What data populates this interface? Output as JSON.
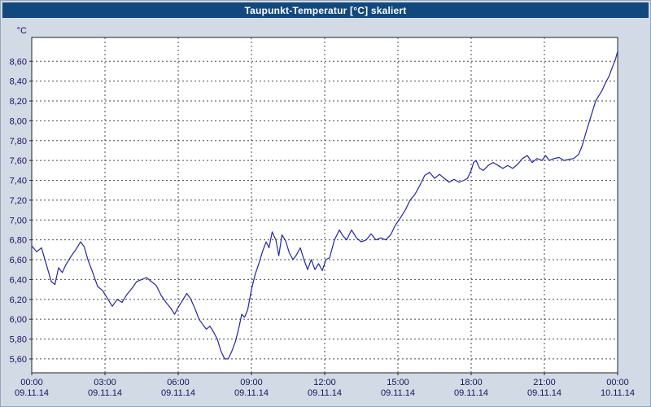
{
  "window": {
    "title": "Taupunkt-Temperatur [°C] skaliert"
  },
  "colors": {
    "background": "#d2dae6",
    "titlebar": "#11497e",
    "titlebar_text": "#ffffff",
    "plot_background": "#ffffff",
    "axis_text": "#12165e"
  },
  "chart_data": {
    "type": "line",
    "title": "Taupunkt-Temperatur [°C] skaliert",
    "xlabel": "",
    "ylabel": "°C",
    "grid": true,
    "grid_color": "#4a4a4a",
    "legend_position": "none",
    "xlim": [
      0,
      24
    ],
    "ylim": [
      5.46,
      8.84
    ],
    "y_ticks": [
      5.6,
      5.8,
      6.0,
      6.2,
      6.4,
      6.6,
      6.8,
      7.0,
      7.2,
      7.4,
      7.6,
      7.8,
      8.0,
      8.2,
      8.4,
      8.6
    ],
    "y_tick_labels": [
      "5,60",
      "5,80",
      "6,00",
      "6,20",
      "6,40",
      "6,60",
      "6,80",
      "7,00",
      "7,20",
      "7,40",
      "7,60",
      "7,80",
      "8,00",
      "8,20",
      "8,40",
      "8,60"
    ],
    "x_ticks": [
      0,
      3,
      6,
      9,
      12,
      15,
      18,
      21,
      24
    ],
    "x_tick_labels": [
      "00:00",
      "03:00",
      "06:00",
      "09:00",
      "12:00",
      "15:00",
      "18:00",
      "21:00",
      "00:00"
    ],
    "x_tick_dates": [
      "09.11.14",
      "09.11.14",
      "09.11.14",
      "09.11.14",
      "09.11.14",
      "09.11.14",
      "09.11.14",
      "09.11.14",
      "10.11.14"
    ],
    "series": [
      {
        "name": "Taupunkt-Temperatur",
        "color": "#2525a5",
        "points": [
          [
            0,
            6.74
          ],
          [
            0.2,
            6.68
          ],
          [
            0.4,
            6.72
          ],
          [
            0.6,
            6.55
          ],
          [
            0.8,
            6.38
          ],
          [
            0.95,
            6.35
          ],
          [
            1.1,
            6.52
          ],
          [
            1.25,
            6.47
          ],
          [
            1.4,
            6.55
          ],
          [
            1.6,
            6.63
          ],
          [
            1.8,
            6.7
          ],
          [
            2.0,
            6.78
          ],
          [
            2.15,
            6.73
          ],
          [
            2.3,
            6.6
          ],
          [
            2.5,
            6.47
          ],
          [
            2.7,
            6.33
          ],
          [
            2.9,
            6.29
          ],
          [
            3.1,
            6.21
          ],
          [
            3.3,
            6.13
          ],
          [
            3.5,
            6.2
          ],
          [
            3.7,
            6.17
          ],
          [
            3.9,
            6.25
          ],
          [
            4.1,
            6.31
          ],
          [
            4.3,
            6.38
          ],
          [
            4.5,
            6.4
          ],
          [
            4.7,
            6.42
          ],
          [
            4.9,
            6.38
          ],
          [
            5.1,
            6.34
          ],
          [
            5.3,
            6.24
          ],
          [
            5.5,
            6.17
          ],
          [
            5.7,
            6.11
          ],
          [
            5.85,
            6.05
          ],
          [
            6.0,
            6.12
          ],
          [
            6.2,
            6.2
          ],
          [
            6.35,
            6.26
          ],
          [
            6.5,
            6.21
          ],
          [
            6.7,
            6.1
          ],
          [
            6.85,
            6.0
          ],
          [
            7.0,
            5.95
          ],
          [
            7.15,
            5.9
          ],
          [
            7.3,
            5.93
          ],
          [
            7.45,
            5.87
          ],
          [
            7.6,
            5.8
          ],
          [
            7.75,
            5.68
          ],
          [
            7.9,
            5.6
          ],
          [
            8.05,
            5.6
          ],
          [
            8.2,
            5.68
          ],
          [
            8.35,
            5.78
          ],
          [
            8.5,
            5.93
          ],
          [
            8.6,
            6.05
          ],
          [
            8.72,
            6.02
          ],
          [
            8.85,
            6.1
          ],
          [
            9.0,
            6.3
          ],
          [
            9.15,
            6.45
          ],
          [
            9.3,
            6.56
          ],
          [
            9.45,
            6.68
          ],
          [
            9.6,
            6.78
          ],
          [
            9.72,
            6.72
          ],
          [
            9.85,
            6.88
          ],
          [
            10.0,
            6.8
          ],
          [
            10.12,
            6.64
          ],
          [
            10.25,
            6.85
          ],
          [
            10.4,
            6.79
          ],
          [
            10.55,
            6.67
          ],
          [
            10.7,
            6.6
          ],
          [
            10.85,
            6.65
          ],
          [
            11.0,
            6.72
          ],
          [
            11.15,
            6.6
          ],
          [
            11.3,
            6.5
          ],
          [
            11.45,
            6.6
          ],
          [
            11.6,
            6.5
          ],
          [
            11.75,
            6.56
          ],
          [
            11.9,
            6.49
          ],
          [
            12.05,
            6.6
          ],
          [
            12.2,
            6.62
          ],
          [
            12.4,
            6.8
          ],
          [
            12.6,
            6.9
          ],
          [
            12.75,
            6.84
          ],
          [
            12.9,
            6.8
          ],
          [
            13.1,
            6.9
          ],
          [
            13.3,
            6.82
          ],
          [
            13.5,
            6.78
          ],
          [
            13.7,
            6.8
          ],
          [
            13.9,
            6.86
          ],
          [
            14.1,
            6.8
          ],
          [
            14.3,
            6.82
          ],
          [
            14.5,
            6.8
          ],
          [
            14.7,
            6.85
          ],
          [
            14.9,
            6.95
          ],
          [
            15.1,
            7.02
          ],
          [
            15.3,
            7.1
          ],
          [
            15.5,
            7.2
          ],
          [
            15.7,
            7.26
          ],
          [
            15.9,
            7.35
          ],
          [
            16.1,
            7.45
          ],
          [
            16.3,
            7.48
          ],
          [
            16.5,
            7.42
          ],
          [
            16.7,
            7.46
          ],
          [
            16.9,
            7.42
          ],
          [
            17.1,
            7.38
          ],
          [
            17.3,
            7.41
          ],
          [
            17.5,
            7.38
          ],
          [
            17.7,
            7.4
          ],
          [
            17.85,
            7.42
          ],
          [
            18.0,
            7.5
          ],
          [
            18.1,
            7.58
          ],
          [
            18.2,
            7.6
          ],
          [
            18.35,
            7.52
          ],
          [
            18.5,
            7.5
          ],
          [
            18.7,
            7.55
          ],
          [
            18.9,
            7.58
          ],
          [
            19.1,
            7.55
          ],
          [
            19.3,
            7.52
          ],
          [
            19.5,
            7.55
          ],
          [
            19.7,
            7.52
          ],
          [
            19.9,
            7.56
          ],
          [
            20.1,
            7.62
          ],
          [
            20.3,
            7.65
          ],
          [
            20.5,
            7.58
          ],
          [
            20.7,
            7.62
          ],
          [
            20.9,
            7.6
          ],
          [
            21.05,
            7.65
          ],
          [
            21.2,
            7.6
          ],
          [
            21.4,
            7.62
          ],
          [
            21.6,
            7.63
          ],
          [
            21.8,
            7.6
          ],
          [
            22.0,
            7.61
          ],
          [
            22.2,
            7.62
          ],
          [
            22.4,
            7.66
          ],
          [
            22.55,
            7.75
          ],
          [
            22.7,
            7.88
          ],
          [
            22.85,
            8.0
          ],
          [
            23.0,
            8.12
          ],
          [
            23.1,
            8.2
          ],
          [
            23.2,
            8.24
          ],
          [
            23.35,
            8.3
          ],
          [
            23.5,
            8.38
          ],
          [
            23.65,
            8.45
          ],
          [
            23.8,
            8.55
          ],
          [
            23.9,
            8.61
          ],
          [
            24.0,
            8.7
          ]
        ]
      }
    ]
  }
}
